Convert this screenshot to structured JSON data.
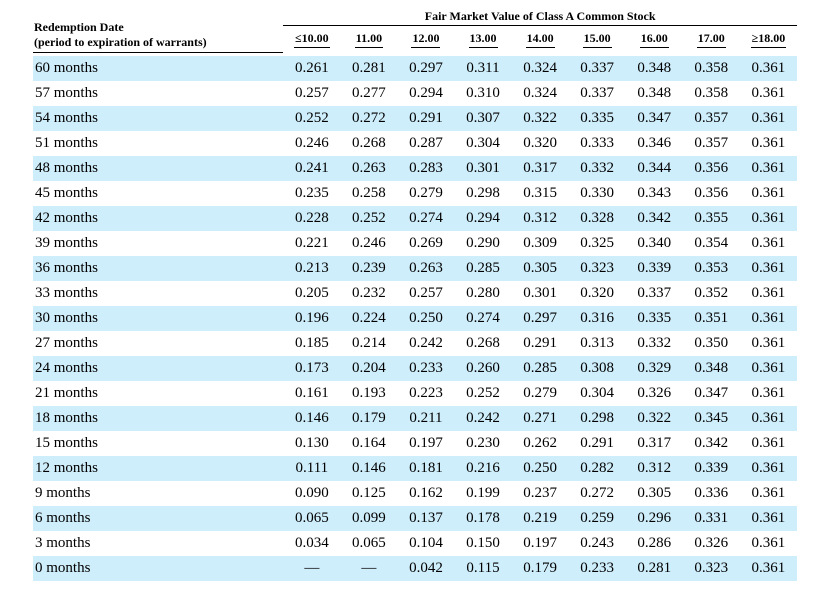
{
  "header": {
    "row_title_line1": "Redemption Date",
    "row_title_line2": "(period to expiration of warrants)",
    "group_title": "Fair Market Value of Class A Common Stock",
    "columns": [
      "≤10.00",
      "11.00",
      "12.00",
      "13.00",
      "14.00",
      "15.00",
      "16.00",
      "17.00",
      "≥18.00"
    ]
  },
  "rows": [
    {
      "label": "60 months",
      "values": [
        "0.261",
        "0.281",
        "0.297",
        "0.311",
        "0.324",
        "0.337",
        "0.348",
        "0.358",
        "0.361"
      ]
    },
    {
      "label": "57 months",
      "values": [
        "0.257",
        "0.277",
        "0.294",
        "0.310",
        "0.324",
        "0.337",
        "0.348",
        "0.358",
        "0.361"
      ]
    },
    {
      "label": "54 months",
      "values": [
        "0.252",
        "0.272",
        "0.291",
        "0.307",
        "0.322",
        "0.335",
        "0.347",
        "0.357",
        "0.361"
      ]
    },
    {
      "label": "51 months",
      "values": [
        "0.246",
        "0.268",
        "0.287",
        "0.304",
        "0.320",
        "0.333",
        "0.346",
        "0.357",
        "0.361"
      ]
    },
    {
      "label": "48 months",
      "values": [
        "0.241",
        "0.263",
        "0.283",
        "0.301",
        "0.317",
        "0.332",
        "0.344",
        "0.356",
        "0.361"
      ]
    },
    {
      "label": "45 months",
      "values": [
        "0.235",
        "0.258",
        "0.279",
        "0.298",
        "0.315",
        "0.330",
        "0.343",
        "0.356",
        "0.361"
      ]
    },
    {
      "label": "42 months",
      "values": [
        "0.228",
        "0.252",
        "0.274",
        "0.294",
        "0.312",
        "0.328",
        "0.342",
        "0.355",
        "0.361"
      ]
    },
    {
      "label": "39 months",
      "values": [
        "0.221",
        "0.246",
        "0.269",
        "0.290",
        "0.309",
        "0.325",
        "0.340",
        "0.354",
        "0.361"
      ]
    },
    {
      "label": "36 months",
      "values": [
        "0.213",
        "0.239",
        "0.263",
        "0.285",
        "0.305",
        "0.323",
        "0.339",
        "0.353",
        "0.361"
      ]
    },
    {
      "label": "33 months",
      "values": [
        "0.205",
        "0.232",
        "0.257",
        "0.280",
        "0.301",
        "0.320",
        "0.337",
        "0.352",
        "0.361"
      ]
    },
    {
      "label": "30 months",
      "values": [
        "0.196",
        "0.224",
        "0.250",
        "0.274",
        "0.297",
        "0.316",
        "0.335",
        "0.351",
        "0.361"
      ]
    },
    {
      "label": "27 months",
      "values": [
        "0.185",
        "0.214",
        "0.242",
        "0.268",
        "0.291",
        "0.313",
        "0.332",
        "0.350",
        "0.361"
      ]
    },
    {
      "label": "24 months",
      "values": [
        "0.173",
        "0.204",
        "0.233",
        "0.260",
        "0.285",
        "0.308",
        "0.329",
        "0.348",
        "0.361"
      ]
    },
    {
      "label": "21 months",
      "values": [
        "0.161",
        "0.193",
        "0.223",
        "0.252",
        "0.279",
        "0.304",
        "0.326",
        "0.347",
        "0.361"
      ]
    },
    {
      "label": "18 months",
      "values": [
        "0.146",
        "0.179",
        "0.211",
        "0.242",
        "0.271",
        "0.298",
        "0.322",
        "0.345",
        "0.361"
      ]
    },
    {
      "label": "15 months",
      "values": [
        "0.130",
        "0.164",
        "0.197",
        "0.230",
        "0.262",
        "0.291",
        "0.317",
        "0.342",
        "0.361"
      ]
    },
    {
      "label": "12 months",
      "values": [
        "0.111",
        "0.146",
        "0.181",
        "0.216",
        "0.250",
        "0.282",
        "0.312",
        "0.339",
        "0.361"
      ]
    },
    {
      "label": "9 months",
      "values": [
        "0.090",
        "0.125",
        "0.162",
        "0.199",
        "0.237",
        "0.272",
        "0.305",
        "0.336",
        "0.361"
      ]
    },
    {
      "label": "6 months",
      "values": [
        "0.065",
        "0.099",
        "0.137",
        "0.178",
        "0.219",
        "0.259",
        "0.296",
        "0.331",
        "0.361"
      ]
    },
    {
      "label": "3 months",
      "values": [
        "0.034",
        "0.065",
        "0.104",
        "0.150",
        "0.197",
        "0.243",
        "0.286",
        "0.326",
        "0.361"
      ]
    },
    {
      "label": "0 months",
      "values": [
        "—",
        "—",
        "0.042",
        "0.115",
        "0.179",
        "0.233",
        "0.281",
        "0.323",
        "0.361"
      ]
    }
  ],
  "colors": {
    "row_shade": "#cfeefb"
  }
}
